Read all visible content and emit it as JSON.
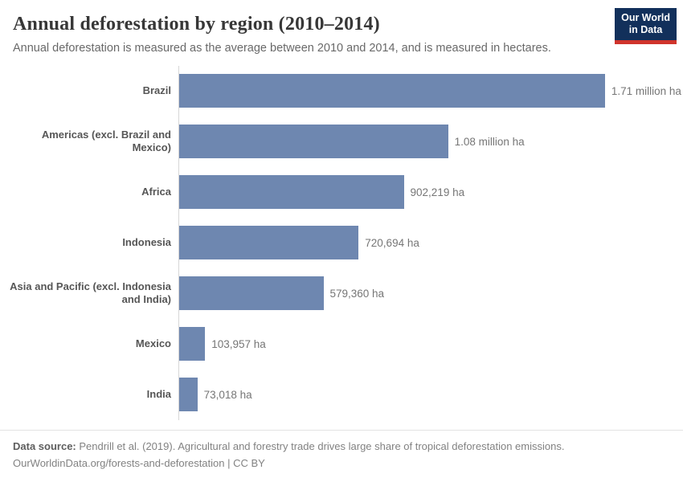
{
  "header": {
    "title": "Annual deforestation by region (2010–2014)",
    "subtitle": "Annual deforestation is measured as the average between 2010 and 2014, and is measured in hectares.",
    "logo": {
      "line1": "Our World",
      "line2": "in Data",
      "bg_color": "#12305b",
      "accent_color": "#d0342c"
    }
  },
  "chart_data": {
    "type": "bar",
    "orientation": "horizontal",
    "title": "Annual deforestation by region (2010–2014)",
    "xlabel": "",
    "ylabel": "",
    "unit": "hectares",
    "grid": false,
    "legend": "none",
    "xlim": [
      0,
      1710000
    ],
    "bar_color": "#6e87b0",
    "categories": [
      "Brazil",
      "Americas (excl. Brazil and Mexico)",
      "Africa",
      "Indonesia",
      "Asia and Pacific (excl. Indonesia and India)",
      "Mexico",
      "India"
    ],
    "values": [
      1710000,
      1080000,
      902219,
      720694,
      579360,
      103957,
      73018
    ],
    "value_labels": [
      "1.71 million ha",
      "1.08 million ha",
      "902,219 ha",
      "720,694 ha",
      "579,360 ha",
      "103,957 ha",
      "73,018 ha"
    ]
  },
  "footer": {
    "source_label": "Data source:",
    "source_text": " Pendrill et al. (2019). Agricultural and forestry trade drives large share of tropical deforestation emissions.",
    "license_line": "OurWorldinData.org/forests-and-deforestation | CC BY"
  }
}
